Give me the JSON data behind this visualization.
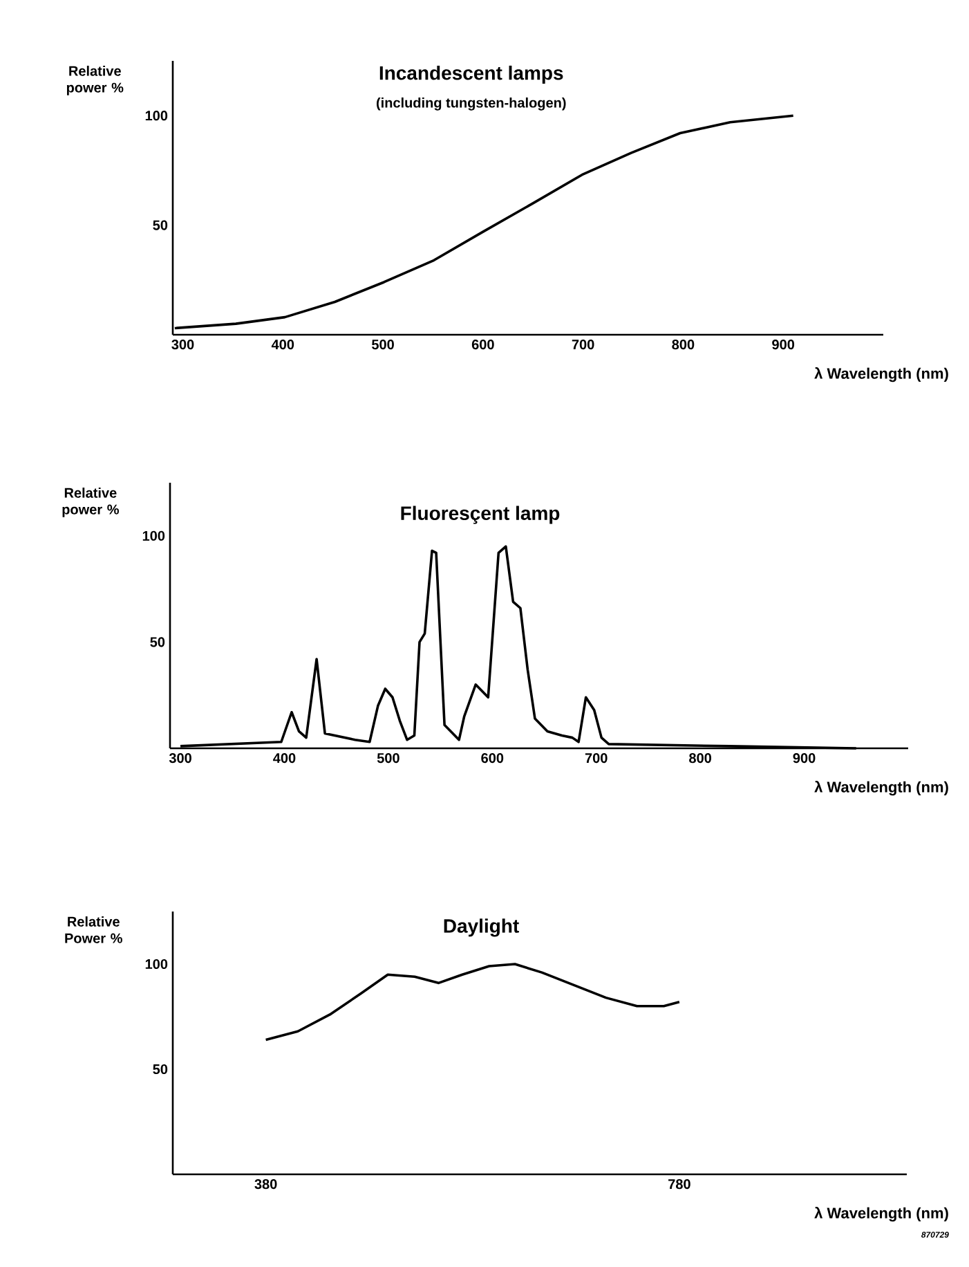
{
  "chart_data": [
    {
      "type": "line",
      "title": "Incandescent lamps",
      "subtitle": "(including tungsten-halogen)",
      "ylabel": "Relative power %",
      "xlabel": "λ Wavelength (nm)",
      "color": "#000000",
      "x": [
        292,
        353,
        402,
        452,
        501,
        551,
        600,
        650,
        699,
        748,
        797,
        847,
        910
      ],
      "values": [
        3,
        5,
        8,
        15,
        24,
        34,
        47,
        60,
        73,
        83,
        92,
        97,
        100
      ],
      "xlim": [
        290,
        1000
      ],
      "ylim": [
        0,
        125
      ],
      "xticks": [
        300,
        400,
        500,
        600,
        700,
        800,
        900
      ],
      "yticks": [
        50,
        100
      ]
    },
    {
      "type": "line",
      "title": "Fluoresçent lamp",
      "ylabel": "Relative power %",
      "xlabel": "λ Wavelength (nm)",
      "color": "#000000",
      "x": [
        300,
        397,
        407,
        414,
        421,
        431,
        439,
        468,
        482,
        490,
        497,
        504,
        511,
        518,
        525,
        530,
        535,
        542,
        546,
        554,
        568,
        573,
        584,
        596,
        606,
        613,
        620,
        627,
        634,
        641,
        653,
        667,
        677,
        683,
        690,
        698,
        705,
        712,
        828,
        950
      ],
      "values": [
        1,
        3,
        17,
        8,
        5,
        42,
        7,
        4,
        3,
        20,
        28,
        24,
        13,
        4,
        6,
        50,
        54,
        93,
        92,
        11,
        4,
        15,
        30,
        24,
        92,
        95,
        69,
        66,
        37,
        14,
        8,
        6,
        5,
        3,
        24,
        18,
        5,
        2,
        1,
        0
      ],
      "xlim": [
        290,
        1000
      ],
      "ylim": [
        0,
        125
      ],
      "xticks": [
        300,
        400,
        500,
        600,
        700,
        800,
        900
      ],
      "yticks": [
        50,
        100
      ]
    },
    {
      "type": "line",
      "title": "Daylight",
      "ylabel": "Relative Power %",
      "xlabel": "λ Wavelength (nm)",
      "annotations": [
        "870729"
      ],
      "color": "#000000",
      "x": [
        380,
        411,
        442,
        472,
        498,
        524,
        547,
        570,
        596,
        621,
        647,
        678,
        709,
        739,
        765,
        780
      ],
      "values": [
        64,
        68,
        76,
        86,
        95,
        94,
        91,
        95,
        99,
        100,
        96,
        90,
        84,
        80,
        80,
        82
      ],
      "xlim": [
        290,
        1000
      ],
      "ylim": [
        0,
        125
      ],
      "xticks": [
        380,
        780
      ],
      "yticks": [
        50,
        100
      ]
    }
  ]
}
